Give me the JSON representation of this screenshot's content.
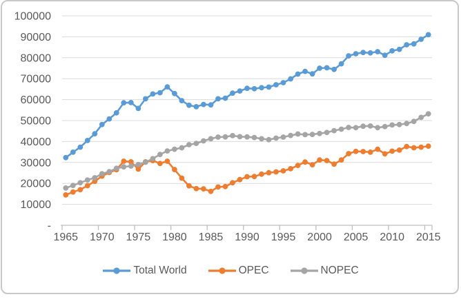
{
  "chart_data": {
    "type": "line",
    "title": "",
    "xlabel": "",
    "ylabel": "",
    "units_hint": "thousand barrels daily",
    "grid": true,
    "legend_position": "bottom",
    "x": [
      1965,
      1966,
      1967,
      1968,
      1969,
      1970,
      1971,
      1972,
      1973,
      1974,
      1975,
      1976,
      1977,
      1978,
      1979,
      1980,
      1981,
      1982,
      1983,
      1984,
      1985,
      1986,
      1987,
      1988,
      1989,
      1990,
      1991,
      1992,
      1993,
      1994,
      1995,
      1996,
      1997,
      1998,
      1999,
      2000,
      2001,
      2002,
      2003,
      2004,
      2005,
      2006,
      2007,
      2008,
      2009,
      2010,
      2011,
      2012,
      2013,
      2014,
      2015
    ],
    "x_tick_labels": [
      "1965",
      "1970",
      "1975",
      "1980",
      "1985",
      "1990",
      "1995",
      "2000",
      "2005",
      "2010",
      "2015"
    ],
    "y_range": [
      0,
      100000
    ],
    "y_ticks": [
      {
        "value": 100000,
        "label": "100000"
      },
      {
        "value": 90000,
        "label": "90000"
      },
      {
        "value": 80000,
        "label": "80000"
      },
      {
        "value": 70000,
        "label": "70000"
      },
      {
        "value": 60000,
        "label": "60000"
      },
      {
        "value": 50000,
        "label": "50000"
      },
      {
        "value": 40000,
        "label": "40000"
      },
      {
        "value": 30000,
        "label": "30000"
      },
      {
        "value": 20000,
        "label": "20000"
      },
      {
        "value": 10000,
        "label": "10000"
      },
      {
        "value": 0,
        "label": "-"
      }
    ],
    "series": [
      {
        "name": "Total World",
        "color": "#5B9BD5",
        "values": [
          32300,
          34900,
          37300,
          40500,
          43700,
          48100,
          50800,
          53700,
          58500,
          58600,
          55800,
          60400,
          62700,
          63300,
          66100,
          62900,
          59500,
          57300,
          56600,
          57700,
          57500,
          60400,
          60700,
          63100,
          64100,
          65400,
          65200,
          65700,
          66000,
          67100,
          68100,
          69900,
          72200,
          73500,
          72300,
          75000,
          75200,
          74400,
          77100,
          80900,
          81900,
          82500,
          82300,
          82900,
          81200,
          83300,
          84000,
          86200,
          86600,
          88800,
          91000
        ]
      },
      {
        "name": "OPEC",
        "color": "#ED7D31",
        "values": [
          14500,
          15900,
          17000,
          18900,
          21000,
          23500,
          25200,
          26500,
          30600,
          30300,
          26800,
          30300,
          30900,
          29500,
          30600,
          26600,
          22500,
          18800,
          17500,
          17400,
          16200,
          18300,
          18500,
          20300,
          21800,
          23200,
          23300,
          24400,
          25100,
          25500,
          26000,
          27000,
          28600,
          30200,
          28900,
          31200,
          30900,
          29200,
          31200,
          34200,
          35300,
          35200,
          34900,
          36300,
          34100,
          35400,
          35900,
          37600,
          37000,
          37300,
          37800
        ]
      },
      {
        "name": "NOPEC",
        "color": "#A5A5A5",
        "values": [
          17800,
          19000,
          20300,
          21600,
          22700,
          24600,
          25600,
          27200,
          27900,
          28300,
          29000,
          30100,
          31800,
          33800,
          35500,
          36300,
          37000,
          38500,
          39100,
          40300,
          41300,
          42100,
          42200,
          42800,
          42300,
          42200,
          41900,
          41300,
          40900,
          41600,
          42100,
          42900,
          43600,
          43300,
          43400,
          43800,
          44300,
          45200,
          45900,
          46700,
          46600,
          47300,
          47400,
          46600,
          47100,
          47900,
          48100,
          48600,
          49600,
          51500,
          53200
        ]
      }
    ]
  },
  "style": {
    "gridline_color": "#D9D9D9",
    "axis_line_color": "#BFBFBF",
    "axis_text_color": "#595959",
    "frame_border_color": "#CAC8C6",
    "background_color": "#FFFFFF"
  }
}
